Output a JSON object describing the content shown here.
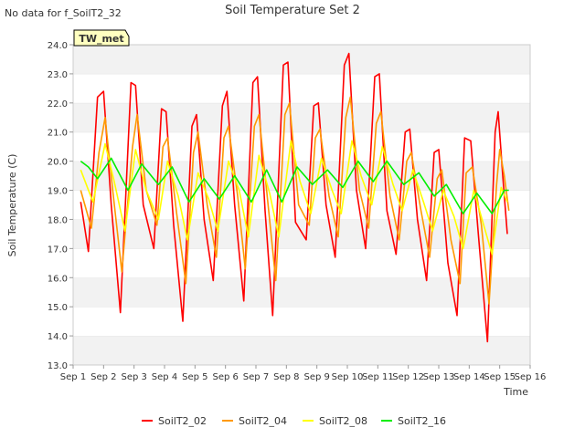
{
  "nodata_text": "No data for f_SoilT2_32",
  "station_tag": "TW_met",
  "chart_data": {
    "type": "line",
    "title": "Soil Temperature Set 2",
    "xlabel": "Time",
    "ylabel": "Soil Temperature (C)",
    "ylim": [
      13.0,
      24.0
    ],
    "yticks": [
      "13.0",
      "14.0",
      "15.0",
      "16.0",
      "17.0",
      "18.0",
      "19.0",
      "20.0",
      "21.0",
      "22.0",
      "23.0",
      "24.0"
    ],
    "xlim": [
      1,
      16
    ],
    "xticks": [
      "Sep 1",
      "Sep 2",
      "Sep 3",
      "Sep 4",
      "Sep 5",
      "Sep 6",
      "Sep 7",
      "Sep 8",
      "Sep 9",
      "Sep 10",
      "Sep 11",
      "Sep 12",
      "Sep 13",
      "Sep 14",
      "Sep 15",
      "Sep 16"
    ],
    "grid": "horizontal bands",
    "legend_position": "bottom",
    "series": [
      {
        "name": "SoilT2_02",
        "color": "#ff0000",
        "points": [
          [
            1.25,
            18.6
          ],
          [
            1.5,
            16.9
          ],
          [
            1.8,
            22.2
          ],
          [
            2.0,
            22.4
          ],
          [
            2.25,
            18.5
          ],
          [
            2.55,
            14.8
          ],
          [
            2.9,
            22.7
          ],
          [
            3.05,
            22.6
          ],
          [
            3.3,
            18.5
          ],
          [
            3.65,
            17.0
          ],
          [
            3.9,
            21.8
          ],
          [
            4.05,
            21.7
          ],
          [
            4.3,
            17.8
          ],
          [
            4.6,
            14.5
          ],
          [
            4.9,
            21.2
          ],
          [
            5.05,
            21.6
          ],
          [
            5.3,
            18.0
          ],
          [
            5.6,
            15.9
          ],
          [
            5.9,
            21.9
          ],
          [
            6.05,
            22.4
          ],
          [
            6.3,
            18.5
          ],
          [
            6.6,
            15.2
          ],
          [
            6.9,
            22.7
          ],
          [
            7.05,
            22.9
          ],
          [
            7.3,
            18.3
          ],
          [
            7.55,
            14.7
          ],
          [
            7.9,
            23.3
          ],
          [
            8.05,
            23.4
          ],
          [
            8.3,
            17.9
          ],
          [
            8.65,
            17.3
          ],
          [
            8.9,
            21.9
          ],
          [
            9.05,
            22.0
          ],
          [
            9.3,
            18.5
          ],
          [
            9.6,
            16.7
          ],
          [
            9.9,
            23.3
          ],
          [
            10.05,
            23.7
          ],
          [
            10.3,
            19.0
          ],
          [
            10.6,
            17.0
          ],
          [
            10.9,
            22.9
          ],
          [
            11.05,
            23.0
          ],
          [
            11.3,
            18.3
          ],
          [
            11.6,
            16.8
          ],
          [
            11.9,
            21.0
          ],
          [
            12.05,
            21.1
          ],
          [
            12.3,
            18.0
          ],
          [
            12.6,
            15.9
          ],
          [
            12.85,
            20.3
          ],
          [
            13.0,
            20.4
          ],
          [
            13.3,
            16.5
          ],
          [
            13.6,
            14.7
          ],
          [
            13.85,
            20.8
          ],
          [
            14.05,
            20.7
          ],
          [
            14.3,
            17.5
          ],
          [
            14.6,
            13.8
          ],
          [
            14.85,
            21.0
          ],
          [
            14.95,
            21.7
          ],
          [
            15.1,
            19.5
          ],
          [
            15.25,
            17.5
          ]
        ]
      },
      {
        "name": "SoilT2_04",
        "color": "#ff9900",
        "points": [
          [
            1.25,
            19.0
          ],
          [
            1.6,
            17.7
          ],
          [
            1.85,
            20.3
          ],
          [
            2.05,
            21.5
          ],
          [
            2.3,
            19.0
          ],
          [
            2.6,
            16.2
          ],
          [
            2.95,
            20.5
          ],
          [
            3.1,
            21.6
          ],
          [
            3.4,
            19.0
          ],
          [
            3.75,
            17.8
          ],
          [
            3.95,
            20.5
          ],
          [
            4.1,
            20.8
          ],
          [
            4.4,
            18.2
          ],
          [
            4.7,
            15.8
          ],
          [
            4.95,
            20.3
          ],
          [
            5.1,
            21.0
          ],
          [
            5.4,
            18.5
          ],
          [
            5.7,
            16.7
          ],
          [
            5.95,
            20.8
          ],
          [
            6.1,
            21.2
          ],
          [
            6.4,
            18.8
          ],
          [
            6.65,
            16.3
          ],
          [
            6.95,
            21.2
          ],
          [
            7.1,
            21.6
          ],
          [
            7.4,
            18.5
          ],
          [
            7.65,
            15.9
          ],
          [
            7.95,
            21.6
          ],
          [
            8.1,
            22.0
          ],
          [
            8.4,
            18.5
          ],
          [
            8.75,
            17.8
          ],
          [
            8.95,
            20.8
          ],
          [
            9.1,
            21.1
          ],
          [
            9.4,
            18.8
          ],
          [
            9.7,
            17.4
          ],
          [
            9.95,
            21.5
          ],
          [
            10.1,
            22.2
          ],
          [
            10.4,
            19.0
          ],
          [
            10.7,
            17.7
          ],
          [
            10.95,
            21.3
          ],
          [
            11.1,
            21.7
          ],
          [
            11.4,
            18.8
          ],
          [
            11.7,
            17.3
          ],
          [
            11.95,
            20.0
          ],
          [
            12.1,
            20.3
          ],
          [
            12.4,
            18.4
          ],
          [
            12.7,
            16.7
          ],
          [
            12.95,
            19.4
          ],
          [
            13.1,
            19.7
          ],
          [
            13.4,
            17.3
          ],
          [
            13.7,
            15.8
          ],
          [
            13.9,
            19.6
          ],
          [
            14.1,
            19.8
          ],
          [
            14.4,
            17.8
          ],
          [
            14.65,
            15.1
          ],
          [
            14.9,
            19.2
          ],
          [
            15.0,
            20.4
          ],
          [
            15.15,
            19.5
          ],
          [
            15.3,
            18.3
          ]
        ]
      },
      {
        "name": "SoilT2_08",
        "color": "#ffff00",
        "points": [
          [
            1.25,
            19.7
          ],
          [
            1.65,
            18.6
          ],
          [
            2.05,
            20.6
          ],
          [
            2.35,
            19.3
          ],
          [
            2.7,
            17.6
          ],
          [
            3.05,
            20.4
          ],
          [
            3.4,
            19.0
          ],
          [
            3.8,
            18.0
          ],
          [
            4.1,
            20.0
          ],
          [
            4.45,
            18.8
          ],
          [
            4.75,
            17.3
          ],
          [
            5.1,
            19.6
          ],
          [
            5.45,
            18.7
          ],
          [
            5.75,
            17.6
          ],
          [
            6.1,
            20.0
          ],
          [
            6.45,
            19.0
          ],
          [
            6.75,
            17.4
          ],
          [
            7.1,
            20.2
          ],
          [
            7.45,
            18.9
          ],
          [
            7.75,
            17.4
          ],
          [
            8.15,
            20.7
          ],
          [
            8.45,
            19.3
          ],
          [
            8.8,
            18.2
          ],
          [
            9.15,
            20.1
          ],
          [
            9.5,
            19.0
          ],
          [
            9.8,
            18.2
          ],
          [
            10.15,
            20.7
          ],
          [
            10.45,
            19.5
          ],
          [
            10.8,
            18.5
          ],
          [
            11.15,
            20.5
          ],
          [
            11.5,
            19.2
          ],
          [
            11.8,
            18.3
          ],
          [
            12.15,
            19.7
          ],
          [
            12.5,
            18.6
          ],
          [
            12.8,
            17.6
          ],
          [
            13.15,
            19.0
          ],
          [
            13.5,
            18.1
          ],
          [
            13.8,
            17.0
          ],
          [
            14.15,
            19.0
          ],
          [
            14.45,
            17.9
          ],
          [
            14.75,
            16.8
          ],
          [
            15.05,
            19.1
          ],
          [
            15.25,
            18.6
          ]
        ]
      },
      {
        "name": "SoilT2_16",
        "color": "#00ee00",
        "points": [
          [
            1.25,
            20.0
          ],
          [
            1.5,
            19.8
          ],
          [
            1.8,
            19.4
          ],
          [
            2.25,
            20.1
          ],
          [
            2.8,
            19.0
          ],
          [
            3.25,
            19.9
          ],
          [
            3.8,
            19.2
          ],
          [
            4.25,
            19.8
          ],
          [
            4.8,
            18.6
          ],
          [
            5.3,
            19.4
          ],
          [
            5.8,
            18.7
          ],
          [
            6.3,
            19.5
          ],
          [
            6.85,
            18.6
          ],
          [
            7.35,
            19.7
          ],
          [
            7.85,
            18.6
          ],
          [
            8.35,
            19.8
          ],
          [
            8.85,
            19.2
          ],
          [
            9.35,
            19.7
          ],
          [
            9.85,
            19.1
          ],
          [
            10.35,
            20.0
          ],
          [
            10.85,
            19.3
          ],
          [
            11.3,
            20.0
          ],
          [
            11.85,
            19.2
          ],
          [
            12.35,
            19.6
          ],
          [
            12.85,
            18.8
          ],
          [
            13.25,
            19.2
          ],
          [
            13.8,
            18.2
          ],
          [
            14.25,
            18.9
          ],
          [
            14.75,
            18.2
          ],
          [
            15.15,
            19.0
          ],
          [
            15.3,
            19.0
          ]
        ]
      }
    ]
  }
}
